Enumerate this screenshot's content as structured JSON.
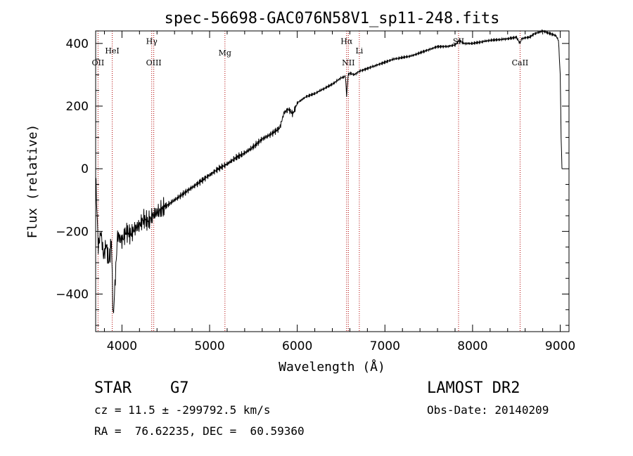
{
  "chart_data": {
    "type": "line",
    "title": "spec-56698-GAC076N58V1_sp11-248.fits",
    "xlabel": "Wavelength (Å)",
    "ylabel": "Flux (relative)",
    "xlim": [
      3700,
      9100
    ],
    "ylim": [
      -520,
      440
    ],
    "x_ticks": [
      4000,
      5000,
      6000,
      7000,
      8000,
      9000
    ],
    "y_ticks": [
      -400,
      -200,
      0,
      200,
      400
    ],
    "grid": false,
    "series": [
      {
        "x": [
          3700,
          3730,
          3760,
          3790,
          3820,
          3850,
          3880,
          3900,
          3950,
          4000,
          4050,
          4100,
          4150,
          4200,
          4250,
          4300,
          4350,
          4400,
          4450,
          4500,
          4600,
          4700,
          4800,
          4900,
          5000,
          5100,
          5200,
          5300,
          5400,
          5500,
          5600,
          5700,
          5800,
          5850,
          5900,
          5950,
          6000,
          6100,
          6200,
          6300,
          6400,
          6500,
          6550,
          6563,
          6580,
          6600,
          6650,
          6700,
          6800,
          6900,
          7000,
          7100,
          7200,
          7300,
          7400,
          7500,
          7600,
          7700,
          7800,
          7850,
          7900,
          8000,
          8100,
          8200,
          8300,
          8400,
          8500,
          8542,
          8560,
          8600,
          8650,
          8700,
          8750,
          8800,
          8850,
          8900,
          8950,
          8980,
          9000,
          9010,
          9020
        ],
        "y": [
          -20,
          -250,
          -200,
          -280,
          -240,
          -300,
          -230,
          -480,
          -210,
          -230,
          -200,
          -210,
          -190,
          -180,
          -160,
          -170,
          -150,
          -140,
          -130,
          -120,
          -100,
          -80,
          -60,
          -40,
          -20,
          0,
          15,
          35,
          50,
          70,
          95,
          110,
          130,
          180,
          190,
          175,
          210,
          230,
          240,
          255,
          270,
          290,
          295,
          230,
          300,
          305,
          300,
          310,
          320,
          330,
          340,
          350,
          355,
          360,
          370,
          380,
          390,
          390,
          395,
          410,
          400,
          400,
          405,
          410,
          412,
          415,
          420,
          400,
          415,
          418,
          420,
          430,
          435,
          440,
          435,
          430,
          425,
          410,
          300,
          100,
          0
        ]
      }
    ],
    "line_markers": [
      {
        "label": "OII",
        "x": 3727,
        "label_y": 330
      },
      {
        "label": "HeI",
        "x": 3889,
        "label_y": 368
      },
      {
        "label": "Hγ",
        "x": 4340,
        "label_y": 398
      },
      {
        "label": "OIII",
        "x": 4363,
        "label_y": 330
      },
      {
        "label": "Mg",
        "x": 5175,
        "label_y": 362
      },
      {
        "label": "Hα",
        "x": 6563,
        "label_y": 398
      },
      {
        "label": "NII",
        "x": 6583,
        "label_y": 330
      },
      {
        "label": "Li",
        "x": 6708,
        "label_y": 368
      },
      {
        "label": "SII",
        "x": 7840,
        "label_y": 398
      },
      {
        "label": "CaII",
        "x": 8542,
        "label_y": 330
      }
    ]
  },
  "info": {
    "class_label": "STAR",
    "subclass": "G7",
    "survey": "LAMOST DR2",
    "cz": "cz = 11.5 ± -299792.5 km/s",
    "obs_date": "Obs-Date: 20140209",
    "coords": "RA =  76.62235, DEC =  60.59360"
  }
}
